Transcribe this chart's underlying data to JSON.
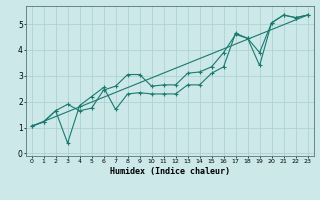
{
  "xlabel": "Humidex (Indice chaleur)",
  "bg_color": "#cce8e8",
  "line_color": "#1a7a6e",
  "grid_color": "#aacece",
  "xlim": [
    -0.5,
    23.5
  ],
  "ylim": [
    -0.1,
    5.7
  ],
  "xticks": [
    0,
    1,
    2,
    3,
    4,
    5,
    6,
    7,
    8,
    9,
    10,
    11,
    12,
    13,
    14,
    15,
    16,
    17,
    18,
    19,
    20,
    21,
    22,
    23
  ],
  "yticks": [
    0,
    1,
    2,
    3,
    4,
    5
  ],
  "line1_x": [
    0,
    1,
    2,
    3,
    4,
    5,
    6,
    7,
    8,
    9,
    10,
    11,
    12,
    13,
    14,
    15,
    16,
    17,
    18,
    19,
    20,
    21,
    22,
    23
  ],
  "line1_y": [
    1.05,
    1.22,
    1.65,
    1.9,
    1.65,
    1.75,
    2.45,
    2.6,
    3.05,
    3.05,
    2.6,
    2.65,
    2.65,
    3.1,
    3.15,
    3.35,
    3.9,
    4.6,
    4.45,
    3.4,
    5.05,
    5.35,
    5.25,
    5.35
  ],
  "line2_x": [
    0,
    23
  ],
  "line2_y": [
    1.05,
    5.35
  ],
  "line3_x": [
    0,
    1,
    2,
    3,
    4,
    5,
    6,
    7,
    8,
    9,
    10,
    11,
    12,
    13,
    14,
    15,
    16,
    17,
    18,
    19,
    20,
    21,
    22,
    23
  ],
  "line3_y": [
    1.05,
    1.22,
    1.65,
    0.4,
    1.85,
    2.2,
    2.55,
    1.7,
    2.3,
    2.35,
    2.3,
    2.3,
    2.3,
    2.65,
    2.65,
    3.1,
    3.35,
    4.65,
    4.45,
    3.9,
    5.05,
    5.35,
    5.25,
    5.35
  ]
}
